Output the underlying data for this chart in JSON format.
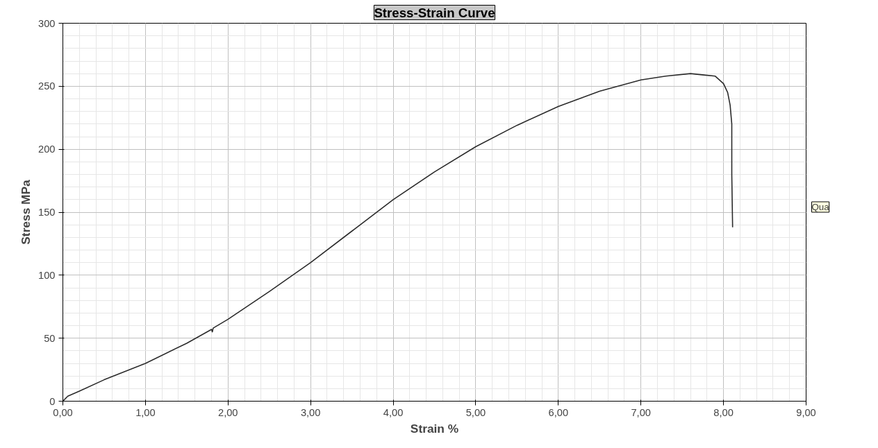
{
  "chart_data": {
    "type": "line",
    "title": "Stress-Strain Curve",
    "xlabel": "Strain %",
    "ylabel": "Stress MPa",
    "x": [
      0,
      0.06,
      0.2,
      0.5,
      1.0,
      1.5,
      1.8,
      1.81,
      1.82,
      2.0,
      2.5,
      3.0,
      3.5,
      4.0,
      4.5,
      5.0,
      5.5,
      6.0,
      6.5,
      7.0,
      7.3,
      7.6,
      7.9,
      8.0,
      8.05,
      8.08,
      8.1,
      8.1,
      8.11
    ],
    "series": [
      {
        "color": "#2b2b2b",
        "values": [
          0,
          4,
          8,
          17,
          30,
          46,
          57,
          55,
          58,
          65,
          87,
          110,
          135,
          160,
          182,
          202,
          219,
          234,
          246,
          255,
          258,
          260,
          258,
          252,
          245,
          235,
          220,
          180,
          138
        ]
      }
    ],
    "xlim": [
      0,
      9
    ],
    "ylim": [
      0,
      300
    ],
    "xticks": [
      {
        "value": 0,
        "label": "0,00"
      },
      {
        "value": 1,
        "label": "1,00"
      },
      {
        "value": 2,
        "label": "2,00"
      },
      {
        "value": 3,
        "label": "3,00"
      },
      {
        "value": 4,
        "label": "4,00"
      },
      {
        "value": 5,
        "label": "5,00"
      },
      {
        "value": 6,
        "label": "6,00"
      },
      {
        "value": 7,
        "label": "7,00"
      },
      {
        "value": 8,
        "label": "8,00"
      },
      {
        "value": 9,
        "label": "9,00"
      }
    ],
    "yticks": [
      0,
      50,
      100,
      150,
      200,
      250,
      300
    ],
    "grid": true,
    "line_style": "solid",
    "marker": "none",
    "annotations": [
      "Qua"
    ]
  }
}
